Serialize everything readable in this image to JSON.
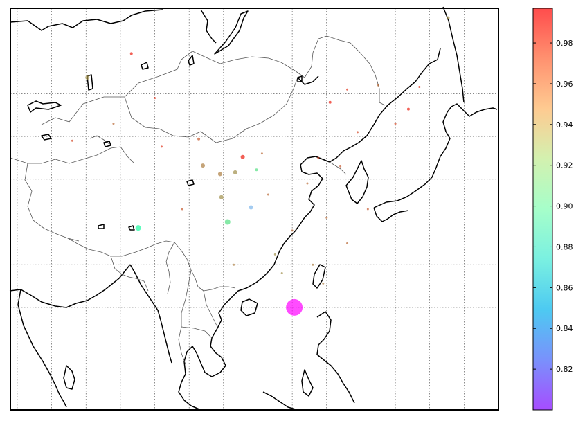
{
  "chart_data": {
    "type": "scatter",
    "subtype": "geographic-bubble-map",
    "title": "",
    "region": "East & Southeast Asia",
    "map_projection": "cylindrical",
    "grid": true,
    "grid_lon_step_deg": 5,
    "grid_lat_step_deg": 5,
    "lon_range": [
      69,
      140
    ],
    "lat_range": [
      8,
      55
    ],
    "colormap": "rainbow",
    "colorbar": {
      "range": [
        0.8,
        0.997
      ],
      "ticks": [
        "0.82",
        "0.84",
        "0.86",
        "0.88",
        "0.90",
        "0.92",
        "0.94",
        "0.96",
        "0.98"
      ],
      "tick_values": [
        0.82,
        0.84,
        0.86,
        0.88,
        0.9,
        0.92,
        0.94,
        0.96,
        0.98
      ],
      "location": "right"
    },
    "points": [
      {
        "lon": 110.3,
        "lat": 20.0,
        "value": 0.8,
        "size": 12
      },
      {
        "lon": 100.6,
        "lat": 30.0,
        "value": 0.93,
        "size": 4
      },
      {
        "lon": 87.6,
        "lat": 29.3,
        "value": 0.91,
        "size": 4
      },
      {
        "lon": 104.0,
        "lat": 31.7,
        "value": 0.85,
        "size": 3
      },
      {
        "lon": 104.8,
        "lat": 36.1,
        "value": 0.93,
        "size": 2
      },
      {
        "lon": 102.8,
        "lat": 37.6,
        "value": 0.99,
        "size": 3
      },
      {
        "lon": 97.0,
        "lat": 36.6,
        "value": 0.965,
        "size": 3
      },
      {
        "lon": 99.5,
        "lat": 35.6,
        "value": 0.965,
        "size": 3
      },
      {
        "lon": 101.7,
        "lat": 35.8,
        "value": 0.96,
        "size": 3
      },
      {
        "lon": 99.7,
        "lat": 32.9,
        "value": 0.96,
        "size": 3
      },
      {
        "lon": 96.4,
        "lat": 39.7,
        "value": 0.975,
        "size": 2
      },
      {
        "lon": 80.2,
        "lat": 46.9,
        "value": 0.96,
        "size": 3
      },
      {
        "lon": 86.6,
        "lat": 49.7,
        "value": 0.99,
        "size": 2
      },
      {
        "lon": 132.7,
        "lat": 53.9,
        "value": 0.96,
        "size": 2
      },
      {
        "lon": 126.9,
        "lat": 43.2,
        "value": 0.99,
        "size": 2
      },
      {
        "lon": 115.5,
        "lat": 44.0,
        "value": 0.99,
        "size": 2
      },
      {
        "lon": 118.0,
        "lat": 45.5,
        "value": 0.985,
        "size": 1.5
      },
      {
        "lon": 105.6,
        "lat": 38.0,
        "value": 0.97,
        "size": 1.5
      },
      {
        "lon": 112.2,
        "lat": 34.5,
        "value": 0.97,
        "size": 1.5
      },
      {
        "lon": 107.5,
        "lat": 26.2,
        "value": 0.96,
        "size": 1.5
      },
      {
        "lon": 113.0,
        "lat": 25.0,
        "value": 0.965,
        "size": 1.5
      },
      {
        "lon": 108.5,
        "lat": 24.0,
        "value": 0.96,
        "size": 1.5
      },
      {
        "lon": 118.0,
        "lat": 27.5,
        "value": 0.97,
        "size": 1.5
      },
      {
        "lon": 90.0,
        "lat": 44.5,
        "value": 0.985,
        "size": 1.5
      },
      {
        "lon": 84.0,
        "lat": 41.5,
        "value": 0.97,
        "size": 1.5
      },
      {
        "lon": 91.0,
        "lat": 38.8,
        "value": 0.985,
        "size": 1.5
      },
      {
        "lon": 122.5,
        "lat": 46.0,
        "value": 0.97,
        "size": 1.5
      },
      {
        "lon": 119.5,
        "lat": 40.5,
        "value": 0.98,
        "size": 1.5
      },
      {
        "lon": 113.8,
        "lat": 37.5,
        "value": 0.98,
        "size": 1.5
      },
      {
        "lon": 110.0,
        "lat": 29.0,
        "value": 0.97,
        "size": 1.5
      },
      {
        "lon": 114.5,
        "lat": 22.8,
        "value": 0.965,
        "size": 1.5
      },
      {
        "lon": 121.0,
        "lat": 31.5,
        "value": 0.975,
        "size": 1.5
      },
      {
        "lon": 117.0,
        "lat": 36.5,
        "value": 0.975,
        "size": 1.5
      },
      {
        "lon": 125.0,
        "lat": 41.5,
        "value": 0.98,
        "size": 1.5
      },
      {
        "lon": 128.5,
        "lat": 45.8,
        "value": 0.985,
        "size": 1.5
      },
      {
        "lon": 94.0,
        "lat": 31.5,
        "value": 0.975,
        "size": 1.5
      },
      {
        "lon": 78.0,
        "lat": 39.5,
        "value": 0.98,
        "size": 1.5
      },
      {
        "lon": 106.5,
        "lat": 33.2,
        "value": 0.97,
        "size": 1.5
      },
      {
        "lon": 101.5,
        "lat": 25.0,
        "value": 0.965,
        "size": 1.5
      },
      {
        "lon": 115.0,
        "lat": 30.5,
        "value": 0.97,
        "size": 1.5
      }
    ]
  }
}
